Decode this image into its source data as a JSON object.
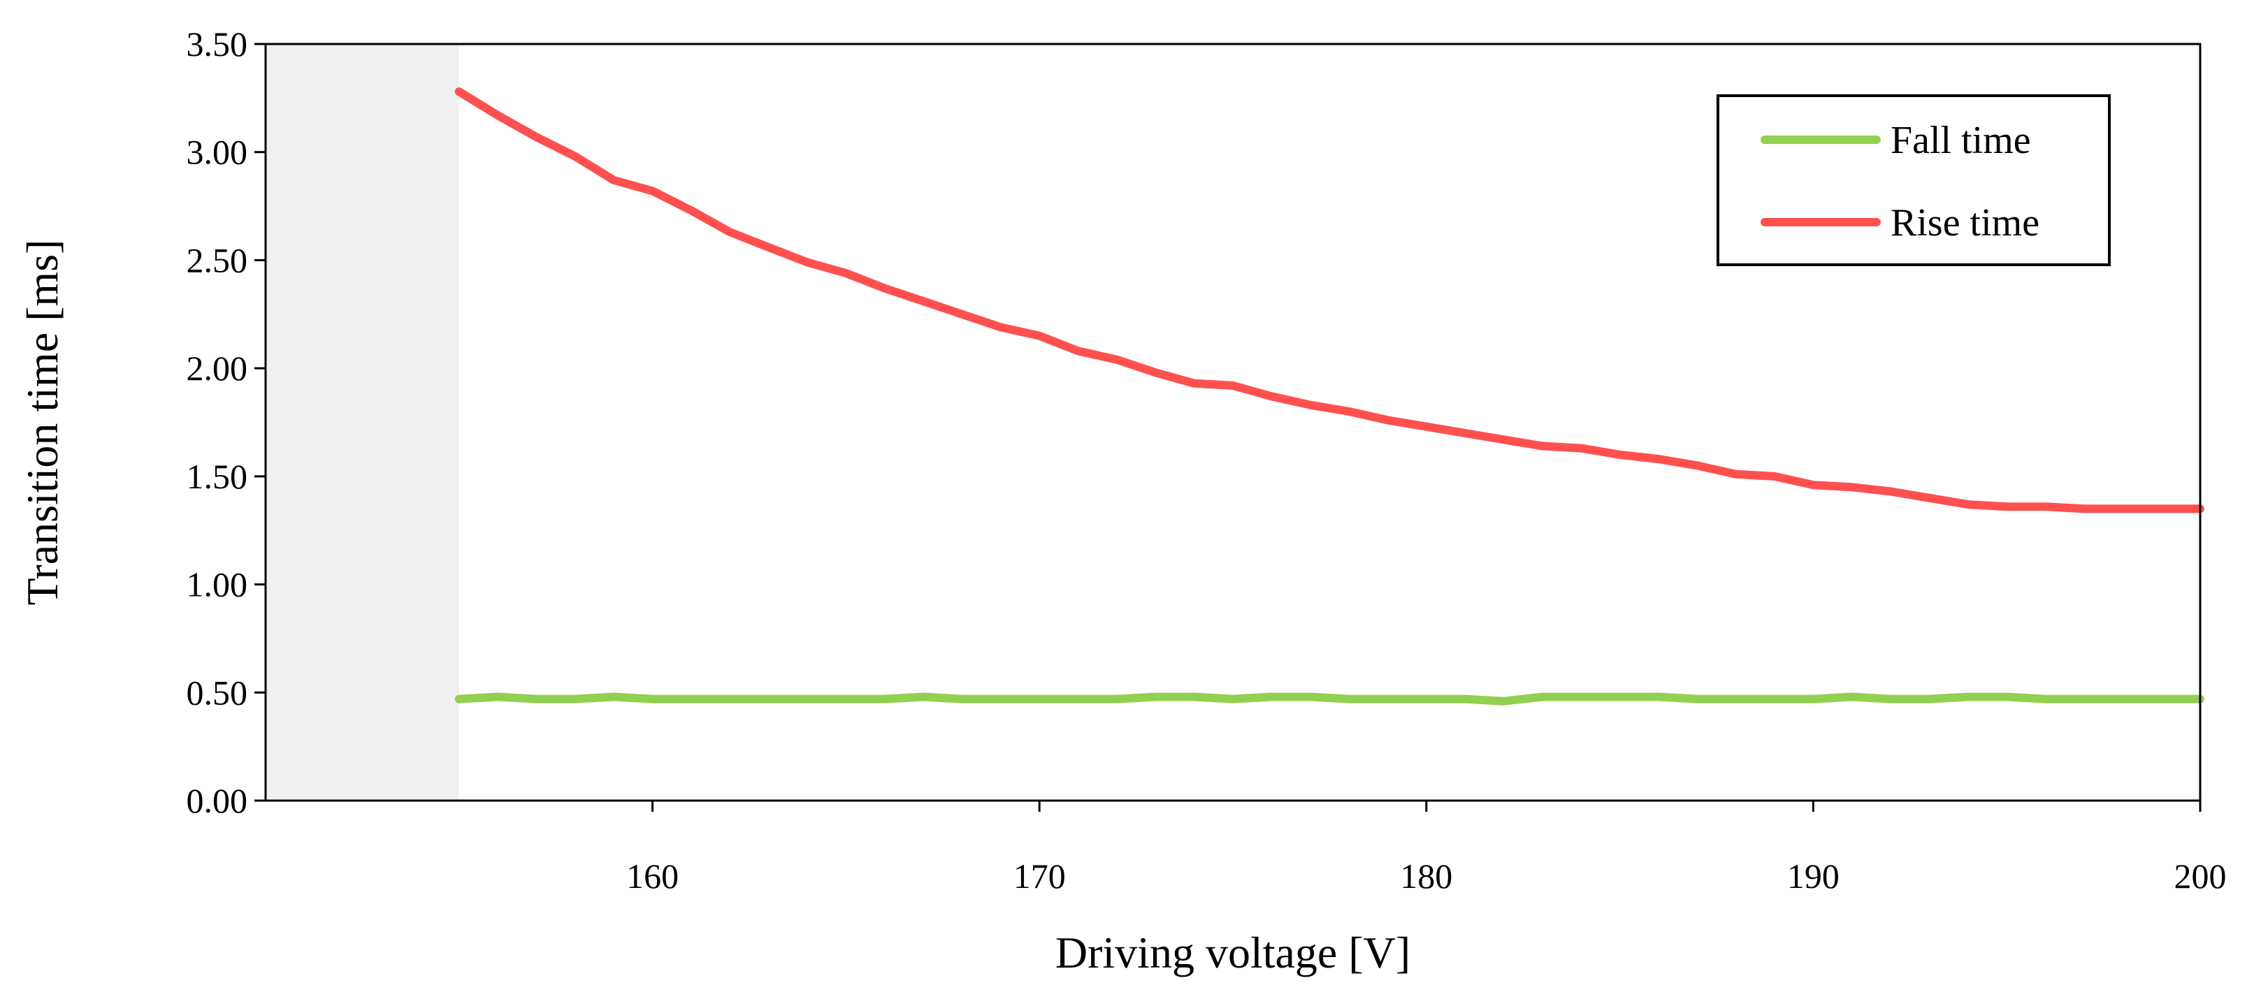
{
  "chart_data": {
    "type": "line",
    "title": "",
    "xlabel": "Driving voltage [V]",
    "ylabel": "Transition time [ms]",
    "xlim": [
      150,
      200
    ],
    "ylim": [
      0,
      3.5
    ],
    "x_ticks": [
      160,
      170,
      180,
      190,
      200
    ],
    "x_tick_labels": [
      "160",
      "170",
      "180",
      "190",
      "200"
    ],
    "y_ticks": [
      0,
      0.5,
      1.0,
      1.5,
      2.0,
      2.5,
      3.0,
      3.5
    ],
    "y_tick_labels": [
      "0.00",
      "0.50",
      "1.00",
      "1.50",
      "2.00",
      "2.50",
      "3.00",
      "3.50"
    ],
    "shaded_region": {
      "x_start": 150,
      "x_end": 155,
      "color": "#f0f0f0"
    },
    "legend_position": "top-right",
    "grid": false,
    "series": [
      {
        "name": "Fall time",
        "color": "#92d050",
        "x": [
          155,
          156,
          157,
          158,
          159,
          160,
          161,
          162,
          163,
          164,
          165,
          166,
          167,
          168,
          169,
          170,
          171,
          172,
          173,
          174,
          175,
          176,
          177,
          178,
          179,
          180,
          181,
          182,
          183,
          184,
          185,
          186,
          187,
          188,
          189,
          190,
          191,
          192,
          193,
          194,
          195,
          196,
          197,
          198,
          199,
          200
        ],
        "values": [
          0.47,
          0.48,
          0.47,
          0.47,
          0.48,
          0.47,
          0.47,
          0.47,
          0.47,
          0.47,
          0.47,
          0.47,
          0.48,
          0.47,
          0.47,
          0.47,
          0.47,
          0.47,
          0.48,
          0.48,
          0.47,
          0.48,
          0.48,
          0.47,
          0.47,
          0.47,
          0.47,
          0.46,
          0.48,
          0.48,
          0.48,
          0.48,
          0.47,
          0.47,
          0.47,
          0.47,
          0.48,
          0.47,
          0.47,
          0.48,
          0.48,
          0.47,
          0.47,
          0.47,
          0.47,
          0.47
        ]
      },
      {
        "name": "Rise time",
        "color": "#ff5050",
        "x": [
          155,
          156,
          157,
          158,
          159,
          160,
          161,
          162,
          163,
          164,
          165,
          166,
          167,
          168,
          169,
          170,
          171,
          172,
          173,
          174,
          175,
          176,
          177,
          178,
          179,
          180,
          181,
          182,
          183,
          184,
          185,
          186,
          187,
          188,
          189,
          190,
          191,
          192,
          193,
          194,
          195,
          196,
          197,
          198,
          199,
          200
        ],
        "values": [
          3.28,
          3.17,
          3.07,
          2.98,
          2.87,
          2.82,
          2.73,
          2.63,
          2.56,
          2.49,
          2.44,
          2.37,
          2.31,
          2.25,
          2.19,
          2.15,
          2.08,
          2.04,
          1.98,
          1.93,
          1.92,
          1.87,
          1.83,
          1.8,
          1.76,
          1.73,
          1.7,
          1.67,
          1.64,
          1.63,
          1.6,
          1.58,
          1.55,
          1.51,
          1.5,
          1.46,
          1.45,
          1.43,
          1.4,
          1.37,
          1.36,
          1.36,
          1.35,
          1.35,
          1.35,
          1.35
        ]
      }
    ]
  }
}
